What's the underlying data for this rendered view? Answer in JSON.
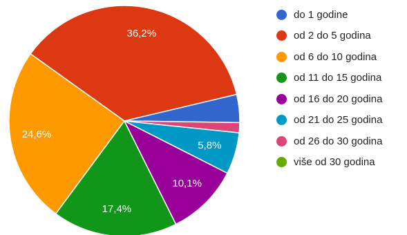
{
  "chart_data": {
    "type": "pie",
    "title": "",
    "legend_position": "right",
    "series": [
      {
        "name": "do 1 godine",
        "value": 3.9,
        "label": "",
        "color": "#3366cc"
      },
      {
        "name": "od 2 do 5 godina",
        "value": 36.2,
        "label": "36,2%",
        "color": "#dc3912"
      },
      {
        "name": "od 6 do 10 godina",
        "value": 24.6,
        "label": "24,6%",
        "color": "#ff9900"
      },
      {
        "name": "od 11 do 15 godina",
        "value": 17.4,
        "label": "17,4%",
        "color": "#109618"
      },
      {
        "name": "od 16 do 20 godina",
        "value": 10.1,
        "label": "10,1%",
        "color": "#990099"
      },
      {
        "name": "od 21 do 25 godina",
        "value": 5.8,
        "label": "5,8%",
        "color": "#0099c6"
      },
      {
        "name": "od 26 do 30 godina",
        "value": 1.4,
        "label": "",
        "color": "#dd4477"
      },
      {
        "name": "više od 30 godina",
        "value": 0.0,
        "label": "",
        "color": "#66aa00"
      }
    ]
  }
}
